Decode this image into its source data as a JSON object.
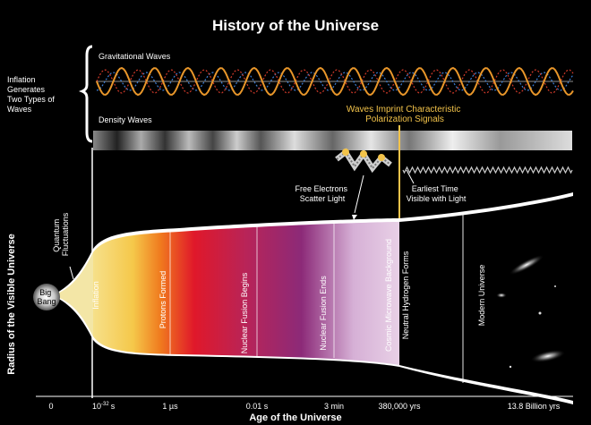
{
  "title": "History of the Universe",
  "inflation_label": [
    "Inflation",
    "Generates",
    "Two Types of",
    "Waves"
  ],
  "gravitational_waves_label": "Gravitational Waves",
  "density_waves_label": "Density Waves",
  "polarization_label": [
    "Waves Imprint Characteristic",
    "Polarization Signals"
  ],
  "free_electrons_label": [
    "Free Electrons",
    "Scatter Light"
  ],
  "earliest_time_label": [
    "Earliest Time",
    "Visible with Light"
  ],
  "y_axis_label": "Radius of the Visible Universe",
  "quantum_label": [
    "Quantum",
    "Fluctuations"
  ],
  "big_bang_label": [
    "Big",
    "Bang"
  ],
  "era_labels": [
    "Inflation",
    "Protons Formed",
    "Nuclear Fusion Begins",
    "Nuclear Fusion Ends",
    "Cosmic Microwave Background",
    "Neutral Hydrogen Forms",
    "Modern Universe"
  ],
  "time_ticks": [
    "0",
    "10",
    "-32",
    "s",
    "1 µs",
    "0.01 s",
    "3 min",
    "380,000 yrs",
    "13.8 Billion yrs"
  ],
  "x_axis_label": "Age of the Universe",
  "colors": {
    "accent_yellow": "#f3c34a",
    "wave_orange": "#e8962a",
    "wave_blue": "#3d7fd6",
    "wave_red": "#d03a2a"
  }
}
